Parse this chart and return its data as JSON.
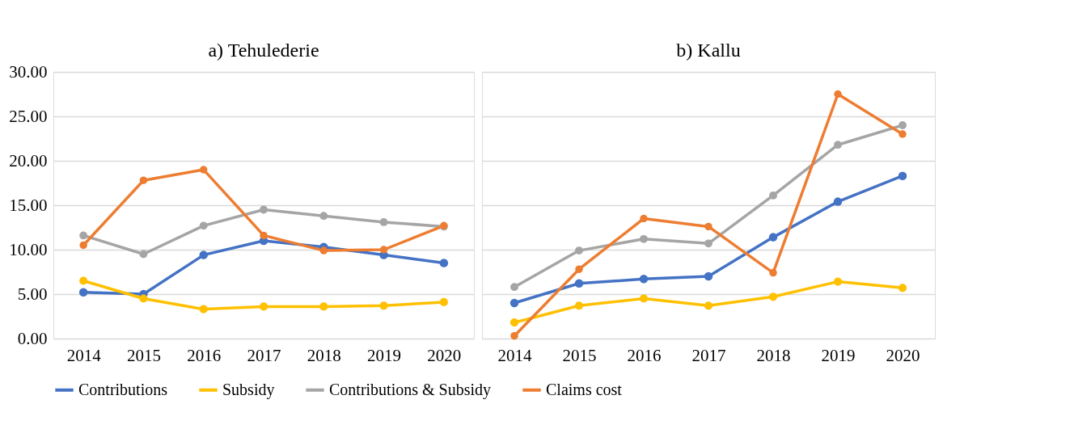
{
  "chart_data": [
    {
      "type": "line",
      "title": "a) Tehulederie",
      "categories": [
        "2014",
        "2015",
        "2016",
        "2017",
        "2018",
        "2019",
        "2020"
      ],
      "series": [
        {
          "name": "Contributions",
          "color": "#4472c4",
          "values": [
            5.2,
            5.0,
            9.4,
            11.0,
            10.3,
            9.4,
            8.5
          ]
        },
        {
          "name": "Subsidy",
          "color": "#ffc000",
          "values": [
            6.5,
            4.5,
            3.3,
            3.6,
            3.6,
            3.7,
            4.1
          ]
        },
        {
          "name": "Contributions & Subsidy",
          "color": "#a5a5a5",
          "values": [
            11.6,
            9.5,
            12.7,
            14.5,
            13.8,
            13.1,
            12.6
          ]
        },
        {
          "name": "Claims cost",
          "color": "#ed7d31",
          "values": [
            10.5,
            17.8,
            19.0,
            11.6,
            9.9,
            10.0,
            12.7
          ]
        }
      ],
      "ylim": [
        0,
        30
      ],
      "yticks": [
        {
          "value": 0,
          "label": "0.00"
        },
        {
          "value": 5,
          "label": "5.00"
        },
        {
          "value": 10,
          "label": "10.00"
        },
        {
          "value": 15,
          "label": "15.00"
        },
        {
          "value": 20,
          "label": "20.00"
        },
        {
          "value": 25,
          "label": "25.00"
        },
        {
          "value": 30,
          "label": "30.00"
        }
      ],
      "grid": "y",
      "legend": "bottom",
      "marker": "circle",
      "line_style": "solid"
    },
    {
      "type": "line",
      "title": "b) Kallu",
      "categories": [
        "2014",
        "2015",
        "2016",
        "2017",
        "2018",
        "2019",
        "2020"
      ],
      "series": [
        {
          "name": "Contributions",
          "color": "#4472c4",
          "values": [
            4.0,
            6.2,
            6.7,
            7.0,
            11.4,
            15.4,
            18.3
          ]
        },
        {
          "name": "Subsidy",
          "color": "#ffc000",
          "values": [
            1.8,
            3.7,
            4.5,
            3.7,
            4.7,
            6.4,
            5.7
          ]
        },
        {
          "name": "Contributions & Subsidy",
          "color": "#a5a5a5",
          "values": [
            5.8,
            9.9,
            11.2,
            10.7,
            16.1,
            21.8,
            24.0
          ]
        },
        {
          "name": "Claims cost",
          "color": "#ed7d31",
          "values": [
            0.3,
            7.8,
            13.5,
            12.6,
            7.4,
            27.5,
            23.0
          ]
        }
      ],
      "ylim": [
        0,
        30
      ],
      "yticks": [
        0,
        5,
        10,
        15,
        20,
        25,
        30
      ],
      "grid": "y",
      "marker": "circle",
      "line_style": "solid",
      "tick_labels": "x"
    }
  ]
}
